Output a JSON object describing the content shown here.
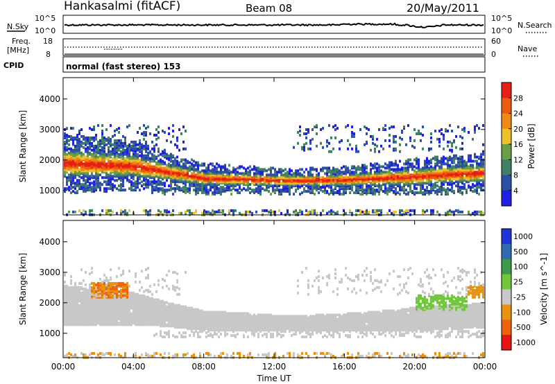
{
  "header": {
    "station": "Hankasalmi (fitACF)",
    "beam": "Beam 08",
    "date": "20/May/2011"
  },
  "nsky_panel": {
    "left_label": "N.Sky",
    "left_ticks": [
      "10^5",
      "10^0"
    ],
    "right_label": "N.Search",
    "right_ticks": [
      "10^5",
      "10^0"
    ]
  },
  "freq_panel": {
    "left_label_1": "Freq.",
    "left_label_2": "[MHz]",
    "left_ticks": [
      "18",
      "8"
    ],
    "right_label": "Nave",
    "right_ticks": [
      "60",
      "0"
    ]
  },
  "cpid": {
    "label": "CPID",
    "text": "normal (fast stereo) 153"
  },
  "colors": {
    "power_scale": [
      "#1f1fe6",
      "#2e4fa6",
      "#3f7f63",
      "#6a9e44",
      "#f0c02a",
      "#f08a12",
      "#ec5a0c",
      "#e61e14"
    ],
    "velocity_scale": [
      "#1f33d6",
      "#2f6bb0",
      "#3a9a4a",
      "#6fc83a",
      "#c8c8c8",
      "#e8920e",
      "#f0620c",
      "#e61414"
    ]
  },
  "chart_data": [
    {
      "type": "heatmap",
      "xlabel": "",
      "ylabel": "Slant Range [km]",
      "xlim": [
        0,
        24
      ],
      "ylim": [
        200,
        4700
      ],
      "x_ticks": [],
      "y_ticks": [
        "1000",
        "2000",
        "3000",
        "4000"
      ],
      "colorbar": {
        "label": "Power [dB]",
        "ticks": [
          "4",
          "8",
          "12",
          "16",
          "20",
          "24",
          "28"
        ]
      },
      "echo_bands": [
        {
          "hours": [
            0,
            2,
            4,
            6,
            8,
            10,
            12,
            14,
            16,
            18,
            20,
            22,
            24
          ],
          "center_km": [
            1950,
            1900,
            1850,
            1650,
            1450,
            1420,
            1380,
            1380,
            1400,
            1450,
            1500,
            1580,
            1620
          ],
          "width_km": [
            500,
            450,
            400,
            300,
            250,
            220,
            200,
            200,
            220,
            250,
            300,
            300,
            320
          ]
        }
      ]
    },
    {
      "type": "heatmap",
      "xlabel": "Time UT",
      "ylabel": "Slant Range [km]",
      "xlim": [
        0,
        24
      ],
      "ylim": [
        200,
        4700
      ],
      "x_ticks": [
        "00:00",
        "04:00",
        "08:00",
        "12:00",
        "16:00",
        "20:00",
        "00:00"
      ],
      "y_ticks": [
        "1000",
        "2000",
        "3000",
        "4000"
      ],
      "colorbar": {
        "label": "Velocity [m s^-1]",
        "ticks": [
          "1000",
          "500",
          "100",
          "25",
          "-25",
          "-100",
          "-500",
          "-1000"
        ]
      }
    }
  ]
}
